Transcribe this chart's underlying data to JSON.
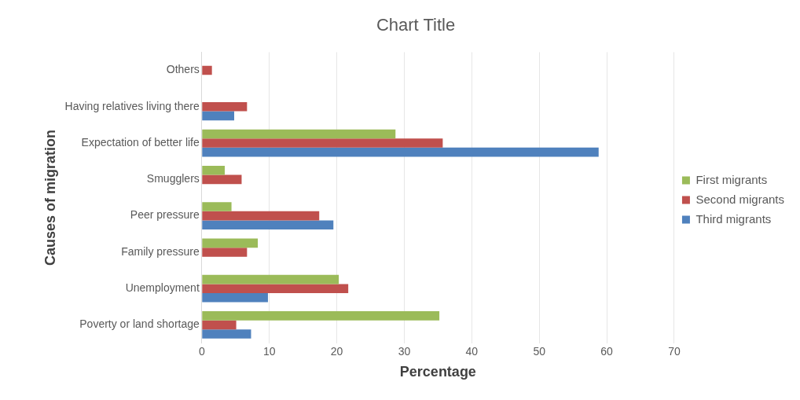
{
  "chart_data": {
    "type": "bar",
    "orientation": "horizontal",
    "title": "Chart Title",
    "xlabel": "Percentage",
    "ylabel": "Causes of migration",
    "categories": [
      "Others",
      "Having relatives living there",
      "Expectation of better life",
      "Smugglers",
      "Peer pressure",
      "Family pressure",
      "Unemployment",
      "Poverty or land shortage"
    ],
    "series": [
      {
        "name": "First migrants",
        "color": "#9bbb59",
        "values": [
          null,
          null,
          28.7,
          3.4,
          4.4,
          8.3,
          20.3,
          35.2
        ]
      },
      {
        "name": "Second migrants",
        "color": "#c0504d",
        "values": [
          1.5,
          6.7,
          35.7,
          5.9,
          17.4,
          6.7,
          21.7,
          5.1
        ]
      },
      {
        "name": "Third migrants",
        "color": "#4f81bd",
        "values": [
          null,
          4.8,
          58.8,
          null,
          19.5,
          null,
          9.8,
          7.3
        ]
      }
    ],
    "xlim": [
      0,
      70
    ],
    "xticks": [
      0,
      10,
      20,
      30,
      40,
      50,
      60,
      70
    ],
    "grid": "x",
    "legend": "right"
  }
}
